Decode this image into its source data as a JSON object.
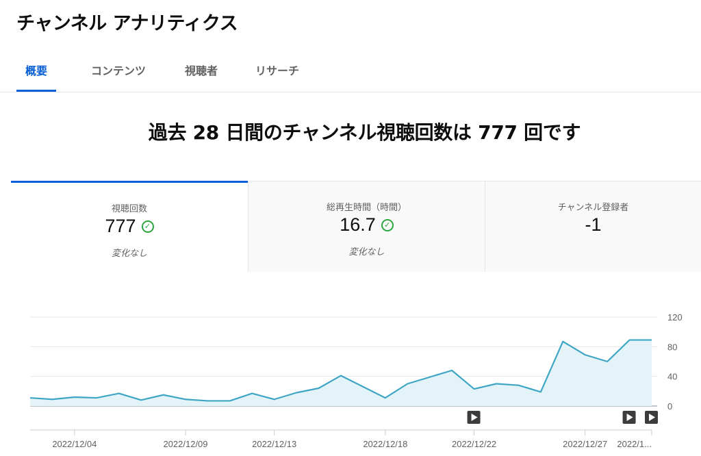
{
  "header": {
    "title": "チャンネル アナリティクス"
  },
  "tabs": [
    {
      "label": "概要",
      "active": true
    },
    {
      "label": "コンテンツ",
      "active": false
    },
    {
      "label": "視聴者",
      "active": false
    },
    {
      "label": "リサーチ",
      "active": false
    }
  ],
  "headline": "過去 28 日間のチャンネル視聴回数は 777 回です",
  "metrics": [
    {
      "label": "視聴回数",
      "value": "777",
      "check": true,
      "change": "変化なし"
    },
    {
      "label": "総再生時間（時間）",
      "value": "16.7",
      "check": true,
      "change": "変化なし"
    },
    {
      "label": "チャンネル登録者",
      "value": "-1",
      "check": false,
      "change": ""
    }
  ],
  "colors": {
    "accent": "#065fd4",
    "line": "#3ea6c4",
    "area": "#e3f3f8",
    "check": "#2ba640"
  },
  "chart_data": {
    "type": "area",
    "x": [
      "2022/12/02",
      "2022/12/03",
      "2022/12/04",
      "2022/12/05",
      "2022/12/06",
      "2022/12/07",
      "2022/12/08",
      "2022/12/09",
      "2022/12/10",
      "2022/12/11",
      "2022/12/12",
      "2022/12/13",
      "2022/12/14",
      "2022/12/15",
      "2022/12/16",
      "2022/12/17",
      "2022/12/18",
      "2022/12/19",
      "2022/12/20",
      "2022/12/21",
      "2022/12/22",
      "2022/12/23",
      "2022/12/24",
      "2022/12/25",
      "2022/12/26",
      "2022/12/27",
      "2022/12/28",
      "2022/12/29",
      "2022/12/30"
    ],
    "values": [
      11,
      9,
      12,
      11,
      17,
      8,
      15,
      9,
      7,
      7,
      17,
      9,
      18,
      24,
      41,
      26,
      11,
      30,
      39,
      48,
      23,
      30,
      28,
      19,
      87,
      69,
      60,
      89,
      89
    ],
    "x_tick_labels": [
      "2022/12/04",
      "2022/12/09",
      "2022/12/13",
      "2022/12/18",
      "2022/12/22",
      "2022/12/27",
      "2022/1..."
    ],
    "y_ticks": [
      0,
      40,
      80,
      120
    ],
    "ylim": [
      0,
      120
    ],
    "video_markers": [
      "2022/12/22",
      "2022/12/29",
      "2022/12/30"
    ],
    "grid": true
  }
}
